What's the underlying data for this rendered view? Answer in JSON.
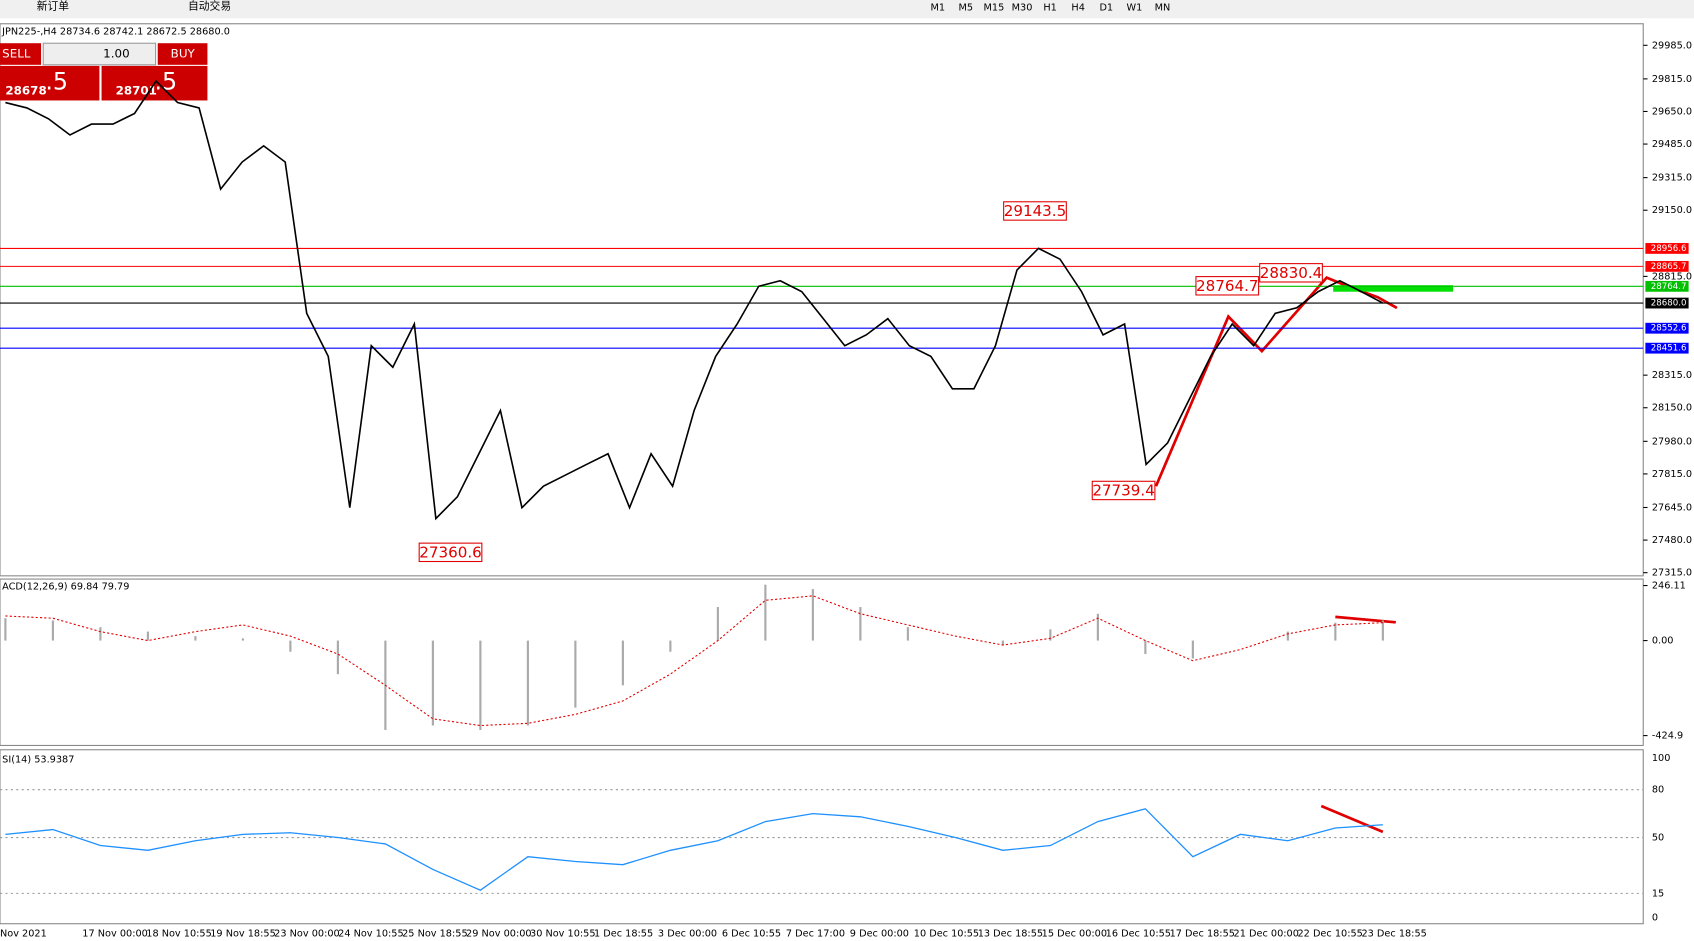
{
  "toolbar": {
    "new_order": "新订单",
    "auto_trading": "自动交易",
    "timeframes": [
      "M1",
      "M5",
      "M15",
      "M30",
      "H1",
      "H4",
      "D1",
      "W1",
      "MN"
    ]
  },
  "trade_panel": {
    "sell": "SELL",
    "buy": "BUY",
    "lots": "1.00",
    "bid_big": "28678",
    "bid_pip": ".5",
    "ask_big": "28701",
    "ask_pip": ".5"
  },
  "chart": {
    "header": "JPN225-,H4  28734.6 28742.1 28672.5 28680.0",
    "ylim": [
      27299,
      30094
    ],
    "yticks": [
      {
        "value": 29985,
        "label": "29985.0"
      },
      {
        "value": 29815,
        "label": "29815.0"
      },
      {
        "value": 29650,
        "label": "29650.0"
      },
      {
        "value": 29485,
        "label": "29485.0"
      },
      {
        "value": 29315,
        "label": "29315.0"
      },
      {
        "value": 29150,
        "label": "29150.0"
      },
      {
        "value": 28815,
        "label": "28815.0"
      },
      {
        "value": 28315,
        "label": "28315.0"
      },
      {
        "value": 28150,
        "label": "28150.0"
      },
      {
        "value": 27980,
        "label": "27980.0"
      },
      {
        "value": 27815,
        "label": "27815.0"
      },
      {
        "value": 27645,
        "label": "27645.0"
      },
      {
        "value": 27480,
        "label": "27480.0"
      },
      {
        "value": 27315,
        "label": "27315.0"
      }
    ],
    "close": [
      29695,
      29668,
      29613,
      29531,
      29586,
      29586,
      29640,
      29804,
      29695,
      29668,
      29257,
      29394,
      29476,
      29394,
      28628,
      28410,
      27644,
      28464,
      28355,
      28574,
      27589,
      27699,
      27917,
      28136,
      27644,
      27753,
      27808,
      27863,
      27917,
      27644,
      27917,
      27753,
      28136,
      28410,
      28574,
      28765,
      28793,
      28738,
      28601,
      28464,
      28519,
      28601,
      28464,
      28410,
      28246,
      28246,
      28464,
      28847,
      28957,
      28902,
      28738,
      28519,
      28574,
      27863,
      27972,
      28191,
      28410,
      28574,
      28464,
      28628,
      28656,
      28738,
      28793,
      28738,
      28680
    ],
    "levels": [
      {
        "value": 28956.6,
        "color": "#ff0000"
      },
      {
        "value": 28865.7,
        "color": "#ff0000"
      },
      {
        "value": 28764.7,
        "color": "#00c000"
      },
      {
        "value": 28680,
        "label": "28680.0",
        "color": "#000000"
      },
      {
        "value": 28552.6,
        "color": "#0000ff"
      },
      {
        "value": 28451.6,
        "color": "#0000ff"
      }
    ],
    "annotations": [
      29143.5,
      28830.4,
      28764.7,
      27739.4,
      27360.6
    ]
  },
  "macd": {
    "label": "ACD(12,26,9) 69.84 79.79",
    "ylim": [
      -469,
      275
    ],
    "yticks": [
      246.11,
      {
        "value": 0,
        "label": "0.00"
      },
      -424.9
    ],
    "histogram": [
      100,
      90,
      60,
      40,
      20,
      10,
      -50,
      -150,
      -400,
      -380,
      -400,
      -380,
      -300,
      -200,
      -50,
      150,
      250,
      230,
      150,
      60,
      0,
      -20,
      50,
      120,
      -60,
      -80,
      0,
      40,
      80,
      90
    ],
    "signal": [
      110,
      100,
      40,
      0,
      40,
      70,
      20,
      -60,
      -200,
      -350,
      -380,
      -370,
      -330,
      -270,
      -150,
      0,
      180,
      200,
      120,
      70,
      20,
      -20,
      10,
      100,
      0,
      -90,
      -40,
      30,
      70,
      80
    ]
  },
  "rsi": {
    "label": "SI(14) 53.9387",
    "ylim": [
      -4,
      105
    ],
    "yticks": [
      100,
      80,
      50,
      15,
      0
    ],
    "values": [
      52,
      55,
      45,
      42,
      48,
      52,
      53,
      50,
      46,
      30,
      17,
      38,
      35,
      33,
      42,
      48,
      60,
      65,
      63,
      57,
      50,
      42,
      45,
      60,
      68,
      38,
      52,
      48,
      56,
      58
    ]
  },
  "dates": [
    "Nov 2021",
    "17 Nov 00:00",
    "18 Nov 10:55",
    "19 Nov 18:55",
    "23 Nov 00:00",
    "24 Nov 10:55",
    "25 Nov 18:55",
    "29 Nov 00:00",
    "30 Nov 10:55",
    "1 Dec 18:55",
    "3 Dec 00:00",
    "6 Dec 10:55",
    "7 Dec 17:00",
    "9 Dec 00:00",
    "10 Dec 10:55",
    "13 Dec 18:55",
    "15 Dec 00:00",
    "16 Dec 10:55",
    "17 Dec 18:55",
    "21 Dec 00:00",
    "22 Dec 10:55",
    "23 Dec 18:55"
  ]
}
